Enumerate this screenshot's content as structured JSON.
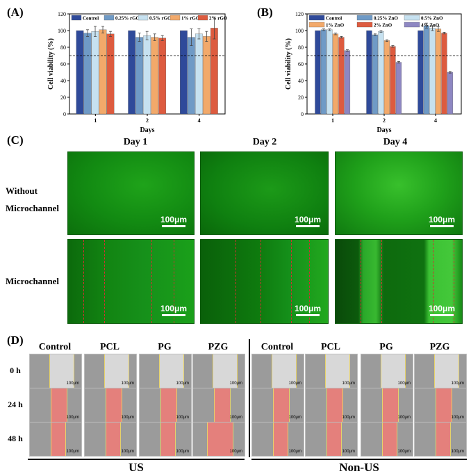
{
  "panels": {
    "A": "(A)",
    "B": "(B)",
    "C": "(C)",
    "D": "(D)"
  },
  "chart_data": [
    {
      "type": "bar",
      "panel": "A",
      "xlabel": "Days",
      "ylabel": "Cell viability (%)",
      "categories": [
        "1",
        "2",
        "4"
      ],
      "ylim": [
        0,
        120
      ],
      "yticks": [
        0,
        20,
        40,
        60,
        80,
        100,
        120
      ],
      "reference_line": 70,
      "legend_position": "top",
      "series": [
        {
          "name": "Control",
          "color": "#2f4a9a",
          "values": [
            100,
            100,
            100
          ],
          "errors": [
            0,
            0,
            0
          ]
        },
        {
          "name": "0.25% rGO",
          "color": "#6f9ac6",
          "values": [
            97,
            92,
            92
          ],
          "errors": [
            4,
            5,
            10
          ]
        },
        {
          "name": "0.5% rGO",
          "color": "#c6e1f0",
          "values": [
            99,
            94,
            96
          ],
          "errors": [
            6,
            5,
            6
          ]
        },
        {
          "name": "1% rGO",
          "color": "#f2a96a",
          "values": [
            101,
            92,
            93
          ],
          "errors": [
            4,
            4,
            6
          ]
        },
        {
          "name": "2% rGO",
          "color": "#dd5b3f",
          "values": [
            96,
            91,
            103
          ],
          "errors": [
            3,
            3,
            13
          ]
        }
      ]
    },
    {
      "type": "bar",
      "panel": "B",
      "xlabel": "Days",
      "ylabel": "Cell viability (%)",
      "categories": [
        "1",
        "2",
        "4"
      ],
      "ylim": [
        0,
        120
      ],
      "yticks": [
        0,
        20,
        40,
        60,
        80,
        100,
        120
      ],
      "reference_line": 70,
      "legend_position": "top",
      "series": [
        {
          "name": "Control",
          "color": "#2f4a9a",
          "values": [
            100,
            100,
            100
          ],
          "errors": [
            0,
            0,
            0
          ]
        },
        {
          "name": "0.25% ZnO",
          "color": "#6f9ac6",
          "values": [
            101,
            95,
            106
          ],
          "errors": [
            1,
            1,
            3
          ]
        },
        {
          "name": "0.5% ZnO",
          "color": "#c6e1f0",
          "values": [
            101,
            99,
            103
          ],
          "errors": [
            1,
            1,
            3
          ]
        },
        {
          "name": "1% ZnO",
          "color": "#f2a96a",
          "values": [
            96,
            88,
            102
          ],
          "errors": [
            1,
            1,
            3
          ]
        },
        {
          "name": "2% ZnO",
          "color": "#dd5b3f",
          "values": [
            92,
            81,
            97
          ],
          "errors": [
            1,
            1,
            1
          ]
        },
        {
          "name": "4% ZnO",
          "color": "#8e87c2",
          "values": [
            76,
            62,
            50
          ],
          "errors": [
            1,
            1,
            1
          ]
        }
      ]
    }
  ],
  "panel_c": {
    "days": [
      "Day 1",
      "Day 2",
      "Day 4"
    ],
    "rows": [
      {
        "label_lines": [
          "Without",
          "Microchannel"
        ]
      },
      {
        "label_lines": [
          "Microchannel"
        ]
      }
    ],
    "scale_label": "100μm"
  },
  "panel_d": {
    "groups": [
      {
        "label": "US",
        "columns": [
          "Control",
          "PCL",
          "PG",
          "PZG"
        ]
      },
      {
        "label": "Non-US",
        "columns": [
          "Control",
          "PCL",
          "PG",
          "PZG"
        ]
      }
    ],
    "times": [
      "0 h",
      "24 h",
      "48 h"
    ],
    "scale_label": "100μm"
  }
}
